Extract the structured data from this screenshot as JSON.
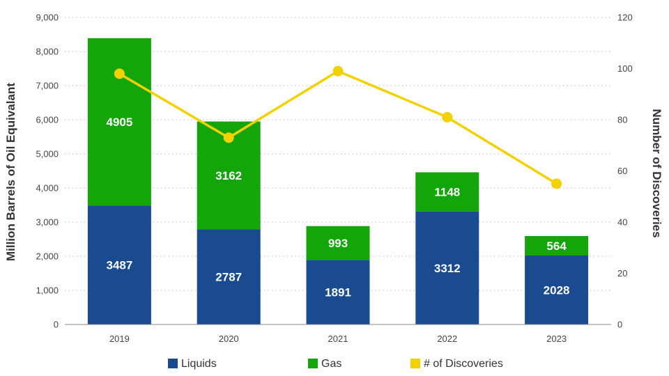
{
  "chart_data": {
    "type": "bar",
    "stacked": true,
    "categories": [
      "2019",
      "2020",
      "2021",
      "2022",
      "2023"
    ],
    "series": [
      {
        "name": "Liquids",
        "axis": "left",
        "color": "#1a4a8f",
        "values": [
          3487,
          2787,
          1891,
          3312,
          2028
        ]
      },
      {
        "name": "Gas",
        "axis": "left",
        "color": "#13a50a",
        "values": [
          4905,
          3162,
          993,
          1148,
          564
        ]
      },
      {
        "name": "# of Discoveries",
        "axis": "right",
        "type": "line",
        "color": "#f2d100",
        "values": [
          98,
          73,
          99,
          81,
          55
        ]
      }
    ],
    "ylabel": "Million Barrels of Oil Equivalant",
    "y2label": "Number of Discoveries",
    "ylim": [
      0,
      9000
    ],
    "y2lim": [
      0,
      120
    ],
    "yticks": [
      "0",
      "1,000",
      "2,000",
      "3,000",
      "4,000",
      "5,000",
      "6,000",
      "7,000",
      "8,000",
      "9,000"
    ],
    "y2ticks": [
      "0",
      "20",
      "40",
      "60",
      "80",
      "100",
      "120"
    ],
    "grid": true,
    "legend_position": "bottom"
  }
}
